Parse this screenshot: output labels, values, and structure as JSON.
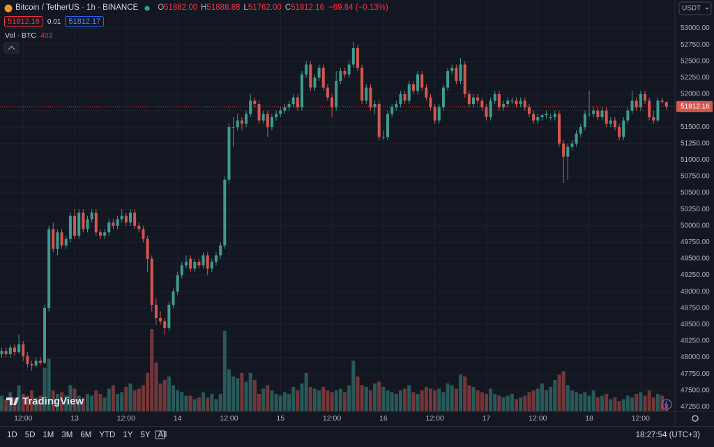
{
  "header": {
    "symbol": "Bitcoin / TetherUS · 1h · BINANCE",
    "ohlc": [
      {
        "key": "O",
        "value": "51882.00"
      },
      {
        "key": "H",
        "value": "51888.88"
      },
      {
        "key": "L",
        "value": "51762.00"
      },
      {
        "key": "C",
        "value": "51812.16"
      }
    ],
    "change": "−69.84 (−0.13%)",
    "bid": "51812.16",
    "spread": "0.01",
    "ask": "51812.17",
    "volume_title": "Vol · BTC",
    "currency": "USDT"
  },
  "chart_data": {
    "type": "candlestick",
    "categories": [
      null,
      null,
      null,
      null,
      null,
      "12:00",
      null,
      null,
      null,
      null,
      null,
      null,
      null,
      null,
      null,
      null,
      null,
      "13",
      null,
      null,
      null,
      null,
      null,
      null,
      null,
      null,
      null,
      null,
      null,
      "12:00",
      null,
      null,
      null,
      null,
      null,
      null,
      null,
      null,
      null,
      null,
      null,
      "14",
      null,
      null,
      null,
      null,
      null,
      null,
      null,
      null,
      null,
      null,
      null,
      "12:00",
      null,
      null,
      null,
      null,
      null,
      null,
      null,
      null,
      null,
      null,
      null,
      "15",
      null,
      null,
      null,
      null,
      null,
      null,
      null,
      null,
      null,
      null,
      null,
      "12:00",
      null,
      null,
      null,
      null,
      null,
      null,
      null,
      null,
      null,
      null,
      null,
      "16",
      null,
      null,
      null,
      null,
      null,
      null,
      null,
      null,
      null,
      null,
      null,
      "12:00",
      null,
      null,
      null,
      null,
      null,
      null,
      null,
      null,
      null,
      null,
      null,
      "17",
      null,
      null,
      null,
      null,
      null,
      null,
      null,
      null,
      null,
      null,
      null,
      "12:00",
      null,
      null,
      null,
      null,
      null,
      null,
      null,
      null,
      null,
      null,
      null,
      "18",
      null,
      null,
      null,
      null,
      null,
      null,
      null,
      null,
      null,
      null,
      null,
      "12:00",
      null,
      null,
      null,
      null,
      null,
      null
    ],
    "ohlc": [
      [
        48050,
        48150,
        48000,
        48100
      ],
      [
        48100,
        48150,
        48000,
        48050
      ],
      [
        48050,
        48200,
        48000,
        48150
      ],
      [
        48150,
        48200,
        48030,
        48080
      ],
      [
        48080,
        48350,
        48050,
        48200
      ],
      [
        48200,
        48250,
        47950,
        48020
      ],
      [
        48020,
        48080,
        47850,
        47900
      ],
      [
        47900,
        47950,
        47800,
        47880
      ],
      [
        47880,
        48000,
        47850,
        47950
      ],
      [
        47950,
        48000,
        47880,
        47920
      ],
      [
        47920,
        48800,
        47900,
        48750
      ],
      [
        48750,
        50000,
        48700,
        49950
      ],
      [
        49950,
        50050,
        49600,
        49650
      ],
      [
        49650,
        49950,
        49550,
        49900
      ],
      [
        49900,
        49950,
        49650,
        49700
      ],
      [
        49700,
        49850,
        49650,
        49800
      ],
      [
        49800,
        50200,
        49750,
        50150
      ],
      [
        50150,
        50250,
        49800,
        49850
      ],
      [
        49850,
        50250,
        49800,
        50200
      ],
      [
        50200,
        50250,
        49900,
        49950
      ],
      [
        49950,
        50150,
        49900,
        50100
      ],
      [
        50100,
        50250,
        50050,
        50200
      ],
      [
        50200,
        50250,
        49850,
        49900
      ],
      [
        49900,
        49950,
        49800,
        49850
      ],
      [
        49850,
        49950,
        49800,
        49900
      ],
      [
        49900,
        50100,
        49850,
        50050
      ],
      [
        50050,
        50100,
        49950,
        50000
      ],
      [
        50000,
        50150,
        49950,
        50100
      ],
      [
        50100,
        50250,
        50050,
        50150
      ],
      [
        50150,
        50200,
        50000,
        50050
      ],
      [
        50050,
        50250,
        50000,
        50200
      ],
      [
        50200,
        50250,
        49950,
        50000
      ],
      [
        50000,
        50050,
        49900,
        49950
      ],
      [
        49950,
        50000,
        49750,
        49800
      ],
      [
        49800,
        49850,
        49300,
        49500
      ],
      [
        49500,
        49550,
        48700,
        48800
      ],
      [
        48800,
        48900,
        48500,
        48600
      ],
      [
        48600,
        48700,
        48500,
        48550
      ],
      [
        48550,
        48600,
        48350,
        48450
      ],
      [
        48450,
        48850,
        48400,
        48800
      ],
      [
        48800,
        49050,
        48750,
        49000
      ],
      [
        49000,
        49300,
        48950,
        49250
      ],
      [
        49250,
        49450,
        49200,
        49400
      ],
      [
        49400,
        49550,
        49350,
        49450
      ],
      [
        49500,
        49550,
        49300,
        49350
      ],
      [
        49350,
        49500,
        49300,
        49450
      ],
      [
        49450,
        49500,
        49350,
        49400
      ],
      [
        49400,
        49600,
        49350,
        49550
      ],
      [
        49550,
        49600,
        49250,
        49350
      ],
      [
        49350,
        49500,
        49300,
        49450
      ],
      [
        49450,
        49600,
        49400,
        49550
      ],
      [
        49550,
        49750,
        49500,
        49700
      ],
      [
        49700,
        50750,
        49650,
        50700
      ],
      [
        50700,
        51550,
        50650,
        51500
      ],
      [
        51500,
        51650,
        51200,
        51500
      ],
      [
        51500,
        51700,
        51450,
        51600
      ],
      [
        51600,
        51650,
        51450,
        51550
      ],
      [
        51550,
        51750,
        51500,
        51700
      ],
      [
        51700,
        52000,
        51650,
        51900
      ],
      [
        51900,
        51950,
        51800,
        51850
      ],
      [
        51850,
        51900,
        51550,
        51600
      ],
      [
        51600,
        51750,
        51550,
        51700
      ],
      [
        51700,
        51750,
        51350,
        51500
      ],
      [
        51500,
        51700,
        51450,
        51650
      ],
      [
        51650,
        51750,
        51600,
        51700
      ],
      [
        51700,
        51800,
        51650,
        51750
      ],
      [
        51750,
        51850,
        51700,
        51800
      ],
      [
        51800,
        51900,
        51750,
        51850
      ],
      [
        51850,
        52000,
        51800,
        51950
      ],
      [
        51950,
        52000,
        51750,
        51800
      ],
      [
        51800,
        52350,
        51750,
        52300
      ],
      [
        52300,
        52500,
        52250,
        52450
      ],
      [
        52450,
        52500,
        52050,
        52100
      ],
      [
        52100,
        52300,
        52050,
        52250
      ],
      [
        52250,
        52450,
        52200,
        52400
      ],
      [
        52400,
        52450,
        52050,
        52100
      ],
      [
        52100,
        52150,
        51900,
        51950
      ],
      [
        51950,
        52000,
        51650,
        51800
      ],
      [
        51800,
        52350,
        51750,
        52200
      ],
      [
        52200,
        52400,
        52150,
        52350
      ],
      [
        52350,
        52400,
        52250,
        52300
      ],
      [
        52300,
        52500,
        52250,
        52450
      ],
      [
        52450,
        52800,
        52400,
        52700
      ],
      [
        52700,
        52750,
        52350,
        52400
      ],
      [
        52400,
        52450,
        51850,
        51900
      ],
      [
        51900,
        52150,
        51850,
        52100
      ],
      [
        52100,
        52150,
        51750,
        51800
      ],
      [
        51800,
        51900,
        51700,
        51850
      ],
      [
        51850,
        51900,
        51300,
        51350
      ],
      [
        51350,
        51450,
        51300,
        51350
      ],
      [
        51350,
        51750,
        51300,
        51700
      ],
      [
        51700,
        51850,
        51650,
        51800
      ],
      [
        51800,
        51900,
        51750,
        51850
      ],
      [
        51850,
        52050,
        51800,
        52000
      ],
      [
        52000,
        52050,
        51850,
        51900
      ],
      [
        51900,
        52200,
        51850,
        52150
      ],
      [
        52150,
        52200,
        52000,
        52050
      ],
      [
        52050,
        52350,
        52000,
        52300
      ],
      [
        52300,
        52350,
        52050,
        52100
      ],
      [
        52100,
        52150,
        51900,
        51950
      ],
      [
        51950,
        52000,
        51750,
        51800
      ],
      [
        51800,
        51850,
        51550,
        51600
      ],
      [
        51600,
        51850,
        51550,
        51800
      ],
      [
        51800,
        52150,
        51750,
        52100
      ],
      [
        52100,
        52400,
        52050,
        52350
      ],
      [
        52350,
        52450,
        52300,
        52400
      ],
      [
        52400,
        52450,
        52150,
        52200
      ],
      [
        52200,
        52550,
        52150,
        52450
      ],
      [
        52450,
        52500,
        51950,
        52000
      ],
      [
        52000,
        52050,
        51800,
        51850
      ],
      [
        51850,
        52000,
        51800,
        51950
      ],
      [
        51950,
        52000,
        51850,
        51900
      ],
      [
        51900,
        51950,
        51750,
        51800
      ],
      [
        51800,
        51850,
        51600,
        51650
      ],
      [
        51650,
        51950,
        51600,
        51900
      ],
      [
        51900,
        52050,
        51850,
        52000
      ],
      [
        52000,
        52050,
        51750,
        51800
      ],
      [
        51800,
        51900,
        51750,
        51850
      ],
      [
        51850,
        51950,
        51800,
        51900
      ],
      [
        51900,
        51950,
        51850,
        51900
      ],
      [
        51900,
        51950,
        51800,
        51850
      ],
      [
        51850,
        51950,
        51800,
        51900
      ],
      [
        51900,
        51950,
        51750,
        51800
      ],
      [
        51800,
        51850,
        51650,
        51700
      ],
      [
        51700,
        51750,
        51550,
        51600
      ],
      [
        51600,
        51700,
        51550,
        51650
      ],
      [
        51650,
        51700,
        51600,
        51680
      ],
      [
        51680,
        51750,
        51620,
        51700
      ],
      [
        51650,
        51700,
        51600,
        51650
      ],
      [
        51650,
        51750,
        51600,
        51700
      ],
      [
        51700,
        51750,
        51200,
        51250
      ],
      [
        51250,
        51300,
        50650,
        51050
      ],
      [
        51050,
        51250,
        50700,
        51200
      ],
      [
        51200,
        51300,
        51150,
        51250
      ],
      [
        51250,
        51450,
        51200,
        51400
      ],
      [
        51400,
        51550,
        51350,
        51500
      ],
      [
        51500,
        51750,
        51450,
        51700
      ],
      [
        51700,
        52050,
        51650,
        51700
      ],
      [
        51700,
        51800,
        51650,
        51750
      ],
      [
        51750,
        51800,
        51600,
        51650
      ],
      [
        51650,
        51800,
        51600,
        51750
      ],
      [
        51750,
        51800,
        51500,
        51550
      ],
      [
        51550,
        51650,
        51500,
        51600
      ],
      [
        51600,
        51650,
        51450,
        51500
      ],
      [
        51500,
        51550,
        51300,
        51350
      ],
      [
        51350,
        51650,
        51300,
        51600
      ],
      [
        51600,
        51800,
        51550,
        51750
      ],
      [
        51750,
        52050,
        51700,
        51900
      ],
      [
        51900,
        51950,
        51750,
        51800
      ],
      [
        51800,
        52050,
        51750,
        52000
      ],
      [
        52000,
        52050,
        51850,
        51900
      ],
      [
        51900,
        51950,
        51600,
        51650
      ],
      [
        51650,
        51750,
        51550,
        51600
      ],
      [
        51600,
        51950,
        51580,
        51900
      ],
      [
        51900,
        51950,
        51850,
        51882
      ],
      [
        51882,
        51888.88,
        51762,
        51812.16
      ]
    ],
    "volumes": [
      900,
      700,
      1100,
      800,
      1500,
      1000,
      900,
      1200,
      800,
      900,
      2500,
      3000,
      1200,
      1000,
      1100,
      900,
      1500,
      1300,
      900,
      800,
      1000,
      900,
      1200,
      1000,
      800,
      1300,
      1500,
      1000,
      1100,
      1400,
      1600,
      1200,
      1300,
      1500,
      2200,
      4700,
      2800,
      1600,
      1800,
      2000,
      1500,
      1200,
      1100,
      900,
      900,
      700,
      800,
      1100,
      800,
      1000,
      700,
      1000,
      4600,
      2400,
      2000,
      1900,
      2200,
      1700,
      2200,
      1800,
      1000,
      1300,
      1500,
      1200,
      1000,
      900,
      1100,
      1000,
      1400,
      1200,
      1600,
      2200,
      1400,
      1300,
      1200,
      1400,
      1200,
      1100,
      1200,
      1300,
      1100,
      1500,
      2900,
      2000,
      1500,
      1400,
      1200,
      1600,
      1700,
      1400,
      1200,
      1100,
      1000,
      1200,
      1300,
      1500,
      1100,
      1000,
      1200,
      1400,
      1300,
      1200,
      1300,
      1100,
      1600,
      1500,
      1300,
      2100,
      2000,
      1500,
      1400,
      1200,
      1100,
      1000,
      1300,
      1000,
      900,
      800,
      900,
      1000,
      700,
      800,
      900,
      1100,
      1200,
      1300,
      1600,
      1200,
      1400,
      1800,
      2100,
      2300,
      1500,
      1200,
      1100,
      1000,
      1100,
      900,
      1200,
      800,
      900,
      1000,
      700,
      800,
      600,
      700,
      900,
      800,
      1000,
      1100,
      900,
      1200,
      800,
      1000,
      900,
      403
    ],
    "up_color": "#3e9b90",
    "down_color": "#d4564f",
    "ylim": [
      47180,
      53430
    ],
    "yticks": [
      {
        "value": 47250,
        "label": "47250.00"
      },
      {
        "value": 47500,
        "label": "47500.00"
      },
      {
        "value": 47750,
        "label": "47750.00"
      },
      {
        "value": 48000,
        "label": "48000.00"
      },
      {
        "value": 48250,
        "label": "48250.00"
      },
      {
        "value": 48500,
        "label": "48500.00"
      },
      {
        "value": 48750,
        "label": "48750.00"
      },
      {
        "value": 49000,
        "label": "49000.00"
      },
      {
        "value": 49250,
        "label": "49250.00"
      },
      {
        "value": 49500,
        "label": "49500.00"
      },
      {
        "value": 49750,
        "label": "49750.00"
      },
      {
        "value": 50000,
        "label": "50000.00"
      },
      {
        "value": 50250,
        "label": "50250.00"
      },
      {
        "value": 50500,
        "label": "50500.00"
      },
      {
        "value": 50750,
        "label": "50750.00"
      },
      {
        "value": 51000,
        "label": "51000.00"
      },
      {
        "value": 51250,
        "label": "51250.00"
      },
      {
        "value": 51500,
        "label": "51500.00"
      },
      {
        "value": 51750,
        "label": "51750.00"
      },
      {
        "value": 52000,
        "label": "52000.00"
      },
      {
        "value": 52250,
        "label": "52250.00"
      },
      {
        "value": 52500,
        "label": "52500.00"
      },
      {
        "value": 52750,
        "label": "52750.00"
      },
      {
        "value": 53000,
        "label": "53000.00"
      }
    ],
    "grid": true,
    "last_price_label": "51812.16",
    "watermark": "TradingView"
  },
  "toolbar": {
    "ranges": [
      "1D",
      "5D",
      "1M",
      "3M",
      "6M",
      "YTD",
      "1Y",
      "5Y",
      "All"
    ],
    "clock": "18:27:54 (UTC+3)"
  }
}
